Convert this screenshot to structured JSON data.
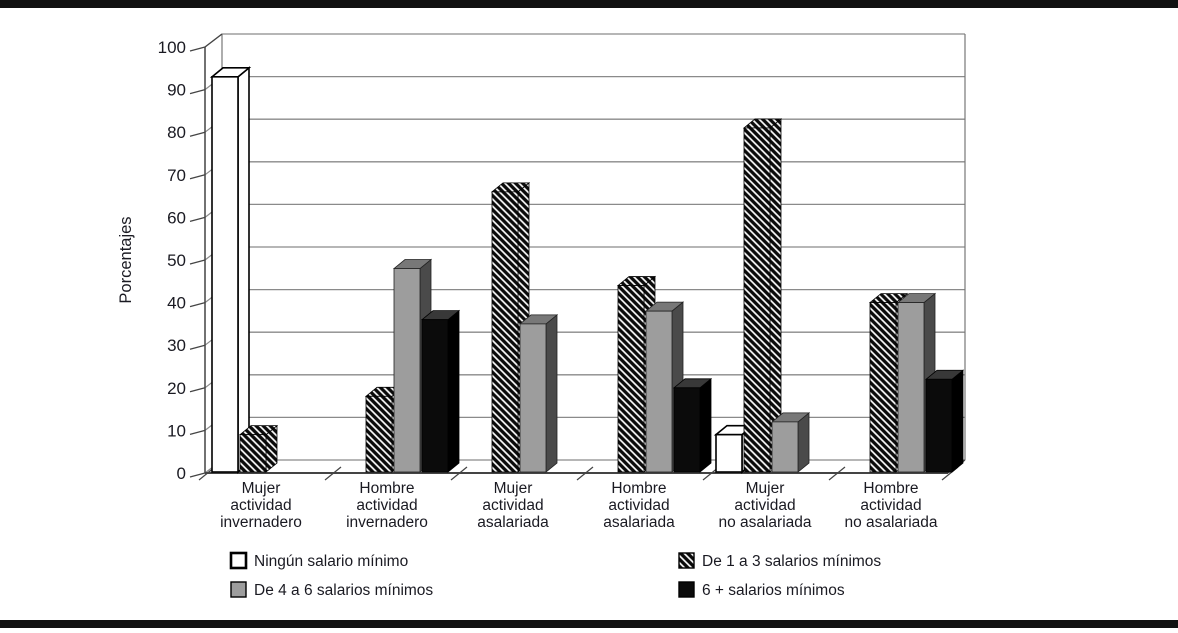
{
  "page": {
    "rule_color": "#111111",
    "background": "#ffffff"
  },
  "colors": {
    "text": "#1a1a22",
    "gridline": "#8a8a8a",
    "axis": "#444444",
    "wall": "#777777",
    "bar_white": "#ffffff",
    "bar_gray": "#9d9d9d",
    "bar_gray_top": "#787878",
    "bar_gray_side": "#4a4a4a",
    "bar_black": "#0b0b0b",
    "bar_black_top": "#383838",
    "bar_black_side": "#000000"
  },
  "chart_data": {
    "type": "bar",
    "title": "",
    "xlabel": "",
    "ylabel": "Porcentajes",
    "ylim": [
      0,
      100
    ],
    "yticks": [
      0,
      10,
      20,
      30,
      40,
      50,
      60,
      70,
      80,
      90,
      100
    ],
    "grid": "horizontal",
    "legend_position": "bottom",
    "style": "3d-column",
    "categories": [
      [
        "Mujer",
        "actividad",
        "invernadero"
      ],
      [
        "Hombre",
        "actividad",
        "invernadero"
      ],
      [
        "Mujer",
        "actividad",
        "asalariada"
      ],
      [
        "Hombre",
        "actividad",
        "asalariada"
      ],
      [
        "Mujer",
        "actividad",
        "no asalariada"
      ],
      [
        "Hombre",
        "actividad",
        "no asalariada"
      ]
    ],
    "series": [
      {
        "name": "Ningún salario mínimo",
        "style": "white",
        "values": [
          93,
          null,
          null,
          null,
          9,
          null
        ]
      },
      {
        "name": "De 1 a 3 salarios mínimos",
        "style": "hatch",
        "values": [
          9,
          18,
          66,
          44,
          81,
          40
        ]
      },
      {
        "name": "De 4 a 6 salarios mínimos",
        "style": "gray",
        "values": [
          null,
          48,
          35,
          38,
          12,
          40
        ]
      },
      {
        "name": "6 + salarios mínimos",
        "style": "black",
        "values": [
          null,
          36,
          null,
          20,
          null,
          22
        ]
      }
    ]
  }
}
